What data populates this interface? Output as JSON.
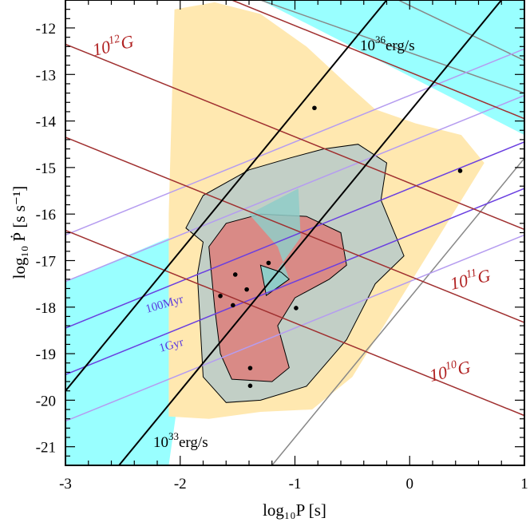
{
  "chart_data": {
    "type": "scatter",
    "xlabel": "log₁₀P [s]",
    "ylabel": "log₁₀ Ṗ [s s⁻¹]",
    "xlim": [
      -3,
      1
    ],
    "ylim": [
      -21.4,
      -11.4
    ],
    "x_ticks": [
      -3,
      -2,
      -1,
      0,
      1
    ],
    "x_tick_labels": [
      "-3",
      "-2",
      "-1",
      "0",
      "1"
    ],
    "y_ticks": [
      -21,
      -20,
      -19,
      -18,
      -17,
      -16,
      -15,
      -14,
      -13,
      -12
    ],
    "y_tick_labels": [
      "-21",
      "-20",
      "-19",
      "-18",
      "-17",
      "-16",
      "-15",
      "-14",
      "-13",
      "-12"
    ],
    "colors": {
      "cyan": "#99ffff",
      "yellow": "#ffe8b0",
      "gray": "#c2cfc6",
      "red": "#d98a86",
      "teal": "#8fcdc8",
      "green": "#c8f0b0",
      "field_line": "#a03030",
      "age_line_light": "#b59cf0",
      "age_line_dark": "#6a3fe0",
      "lum_line": "#000000",
      "gray_line": "#888888",
      "field_text": "#b02020",
      "age_text": "#5a3adf"
    },
    "points": [
      {
        "x": -0.83,
        "y": -13.72
      },
      {
        "x": 0.44,
        "y": -15.07
      },
      {
        "x": -1.23,
        "y": -17.05
      },
      {
        "x": -1.52,
        "y": -17.3
      },
      {
        "x": -1.42,
        "y": -17.62
      },
      {
        "x": -1.65,
        "y": -17.76
      },
      {
        "x": -1.54,
        "y": -17.96
      },
      {
        "x": -0.99,
        "y": -18.02
      },
      {
        "x": -1.39,
        "y": -19.31
      },
      {
        "x": -1.39,
        "y": -19.69
      }
    ],
    "lines": {
      "field": [
        {
          "name": "1e10",
          "x": [
            -3,
            1
          ],
          "y": [
            -16.35,
            -20.33
          ]
        },
        {
          "name": "1e11",
          "x": [
            -3,
            1
          ],
          "y": [
            -14.35,
            -18.33
          ]
        },
        {
          "name": "1e12",
          "x": [
            -3,
            1
          ],
          "y": [
            -12.35,
            -16.33
          ]
        },
        {
          "name": "1e13",
          "x": [
            -1.55,
            1
          ],
          "y": [
            -11.4,
            -13.95
          ]
        }
      ],
      "age": [
        {
          "name": "1Gyr",
          "x": [
            -3,
            1
          ],
          "y": [
            -20.45,
            -16.45
          ],
          "tone": "light"
        },
        {
          "name": "1Gyr",
          "x": [
            -3,
            1
          ],
          "y": [
            -19.45,
            -15.45
          ],
          "tone": "dark"
        },
        {
          "name": "100Myr",
          "x": [
            -3,
            1
          ],
          "y": [
            -18.45,
            -14.45
          ],
          "tone": "dark"
        },
        {
          "name": "10Myr",
          "x": [
            -3,
            1
          ],
          "y": [
            -17.45,
            -13.45
          ],
          "tone": "light"
        },
        {
          "name": "1Myr",
          "x": [
            -3,
            1
          ],
          "y": [
            -16.45,
            -12.45
          ],
          "tone": "light"
        }
      ],
      "luminosity": [
        {
          "name": "1e33",
          "x": [
            -3,
            1
          ],
          "y": [
            -22.8,
            -10.8
          ]
        },
        {
          "name": "1e36",
          "x": [
            -3,
            1
          ],
          "y": [
            -19.8,
            -7.8
          ]
        }
      ],
      "gray": [
        {
          "name": "death-line",
          "x": [
            -1.2,
            1
          ],
          "y": [
            -21.4,
            -14.8
          ]
        },
        {
          "name": "upper-a",
          "x": [
            -1.3,
            1
          ],
          "y": [
            -11.4,
            -13.4
          ]
        },
        {
          "name": "upper-b",
          "x": [
            -0.1,
            1
          ],
          "y": [
            -11.4,
            -12.7
          ]
        }
      ]
    },
    "regions": {
      "cyan_upper": [
        [
          -1.3,
          -11.4
        ],
        [
          1,
          -11.4
        ],
        [
          1,
          -14.3
        ],
        [
          -1.3,
          -11.4
        ]
      ],
      "cyan_lower": [
        [
          -3,
          -17.45
        ],
        [
          -1.8,
          -16.2
        ],
        [
          -2.1,
          -21.4
        ],
        [
          -3,
          -21.4
        ]
      ],
      "yellow": [
        [
          -2.05,
          -11.6
        ],
        [
          -1.7,
          -11.45
        ],
        [
          -1.3,
          -11.7
        ],
        [
          -0.9,
          -12.4
        ],
        [
          -0.55,
          -13.2
        ],
        [
          -0.3,
          -13.75
        ],
        [
          0.05,
          -14.05
        ],
        [
          0.45,
          -14.3
        ],
        [
          0.65,
          -14.9
        ],
        [
          0.4,
          -15.9
        ],
        [
          0.0,
          -17.5
        ],
        [
          -0.5,
          -19.5
        ],
        [
          -0.85,
          -20.2
        ],
        [
          -1.3,
          -20.25
        ],
        [
          -1.75,
          -20.4
        ],
        [
          -2.1,
          -20.35
        ],
        [
          -2.1,
          -16.0
        ]
      ],
      "green": [
        [
          -1.8,
          -16.6
        ],
        [
          -1.68,
          -16.6
        ],
        [
          -1.65,
          -19.5
        ],
        [
          -1.8,
          -19.5
        ]
      ],
      "gray": [
        [
          -1.95,
          -16.3
        ],
        [
          -1.8,
          -15.6
        ],
        [
          -1.4,
          -15.05
        ],
        [
          -1.05,
          -14.8
        ],
        [
          -0.75,
          -14.6
        ],
        [
          -0.45,
          -14.5
        ],
        [
          -0.2,
          -14.9
        ],
        [
          -0.25,
          -15.7
        ],
        [
          -0.15,
          -16.3
        ],
        [
          -0.05,
          -16.9
        ],
        [
          -0.3,
          -17.5
        ],
        [
          -0.55,
          -18.7
        ],
        [
          -0.9,
          -19.7
        ],
        [
          -1.3,
          -20.0
        ],
        [
          -1.6,
          -20.05
        ],
        [
          -1.8,
          -19.5
        ],
        [
          -1.85,
          -17.3
        ],
        [
          -1.8,
          -16.6
        ]
      ],
      "red": [
        [
          -1.75,
          -16.7
        ],
        [
          -1.6,
          -16.2
        ],
        [
          -1.3,
          -16.0
        ],
        [
          -0.9,
          -16.05
        ],
        [
          -0.6,
          -16.4
        ],
        [
          -0.55,
          -17.1
        ],
        [
          -0.7,
          -17.4
        ],
        [
          -1.0,
          -17.8
        ],
        [
          -1.15,
          -18.4
        ],
        [
          -1.05,
          -19.3
        ],
        [
          -1.2,
          -19.6
        ],
        [
          -1.55,
          -19.55
        ],
        [
          -1.65,
          -19.0
        ],
        [
          -1.7,
          -18.0
        ]
      ],
      "teal": [
        [
          -1.4,
          -16.0
        ],
        [
          -0.97,
          -15.45
        ],
        [
          -0.95,
          -16.5
        ],
        [
          -1.15,
          -17.2
        ],
        [
          -1.25,
          -17.75
        ],
        [
          -1.05,
          -17.4
        ],
        [
          -1.15,
          -16.7
        ]
      ],
      "teal_low": [
        [
          -1.12,
          -17.25
        ],
        [
          -1.05,
          -17.4
        ],
        [
          -1.25,
          -17.75
        ],
        [
          -1.3,
          -17.1
        ]
      ]
    },
    "annotations": [
      {
        "key": "b12",
        "base": "10",
        "exp": "12",
        "unit": "G"
      },
      {
        "key": "b11",
        "base": "10",
        "exp": "11",
        "unit": "G"
      },
      {
        "key": "b10",
        "base": "10",
        "exp": "10",
        "unit": "G"
      },
      {
        "key": "l36",
        "base": "10",
        "exp": "36",
        "unit": "erg/s"
      },
      {
        "key": "l33",
        "base": "10",
        "exp": "33",
        "unit": "erg/s"
      },
      {
        "key": "a100",
        "text": "100Myr"
      },
      {
        "key": "a1g",
        "text": "1Gyr"
      }
    ]
  }
}
